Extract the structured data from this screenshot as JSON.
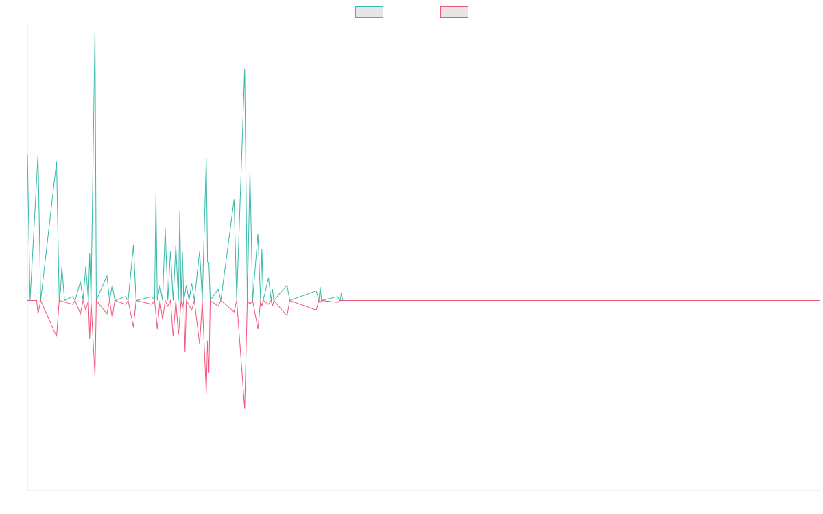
{
  "chart_data": {
    "type": "line",
    "title": "",
    "xlabel": "",
    "ylabel": "",
    "grid": false,
    "legend": {
      "placement": "top-center",
      "entries": [
        {
          "series": 0,
          "label": ""
        },
        {
          "series": 1,
          "label": ""
        }
      ]
    },
    "x_count": 300,
    "ylim": [
      -100,
      145
    ],
    "series": [
      {
        "color": "#36b8a8",
        "fill": "#e6e6e6",
        "points": [
          [
            0,
            77
          ],
          [
            1,
            0
          ],
          [
            4,
            77
          ],
          [
            5,
            0
          ],
          [
            11,
            73
          ],
          [
            12,
            0
          ],
          [
            12.5,
            5
          ],
          [
            13,
            18
          ],
          [
            14,
            0
          ],
          [
            17,
            2
          ],
          [
            18,
            0
          ],
          [
            20,
            10
          ],
          [
            21,
            0
          ],
          [
            22,
            18
          ],
          [
            23,
            0
          ],
          [
            23.5,
            25
          ],
          [
            24,
            0
          ],
          [
            25.5,
            143
          ],
          [
            26,
            0
          ],
          [
            30,
            13
          ],
          [
            31,
            0
          ],
          [
            32,
            8
          ],
          [
            33,
            0
          ],
          [
            37,
            2
          ],
          [
            38,
            0
          ],
          [
            40,
            29
          ],
          [
            41,
            0
          ],
          [
            47,
            2
          ],
          [
            48,
            0
          ],
          [
            48.5,
            56
          ],
          [
            49,
            0
          ],
          [
            50,
            8
          ],
          [
            51,
            0
          ],
          [
            52,
            38
          ],
          [
            53,
            0
          ],
          [
            54,
            26
          ],
          [
            55,
            0
          ],
          [
            56,
            29
          ],
          [
            57,
            0
          ],
          [
            57.5,
            47
          ],
          [
            58,
            0
          ],
          [
            58.5,
            26
          ],
          [
            59,
            0
          ],
          [
            60,
            8
          ],
          [
            61,
            0
          ],
          [
            62,
            9
          ],
          [
            63,
            0
          ],
          [
            65,
            26
          ],
          [
            66,
            0
          ],
          [
            67.5,
            75
          ],
          [
            68,
            20
          ],
          [
            68.5,
            20
          ],
          [
            69,
            0
          ],
          [
            72,
            6
          ],
          [
            73,
            0
          ],
          [
            78,
            53
          ],
          [
            79,
            0
          ],
          [
            82,
            122
          ],
          [
            83,
            0
          ],
          [
            84,
            68
          ],
          [
            85,
            0
          ],
          [
            87,
            35
          ],
          [
            88,
            0
          ],
          [
            88.5,
            27
          ],
          [
            89,
            0
          ],
          [
            91,
            12
          ],
          [
            92,
            0
          ],
          [
            92.5,
            6
          ],
          [
            93,
            0
          ],
          [
            98,
            8
          ],
          [
            99,
            0
          ],
          [
            109,
            5
          ],
          [
            110,
            0
          ],
          [
            110.5,
            7
          ],
          [
            111,
            0
          ],
          [
            117,
            2
          ],
          [
            118,
            0
          ],
          [
            118.5,
            4
          ],
          [
            119,
            0
          ],
          [
            299,
            0
          ]
        ]
      },
      {
        "color": "#f05478",
        "fill": "#e6e6e6",
        "points": [
          [
            0,
            0
          ],
          [
            3.5,
            0
          ],
          [
            4,
            -7
          ],
          [
            5,
            0
          ],
          [
            11,
            -19
          ],
          [
            12,
            0
          ],
          [
            17,
            -2
          ],
          [
            18,
            0
          ],
          [
            20,
            -7
          ],
          [
            21,
            0
          ],
          [
            22,
            -5
          ],
          [
            23,
            0
          ],
          [
            23.5,
            -20
          ],
          [
            24,
            0
          ],
          [
            25.5,
            -40
          ],
          [
            26,
            0
          ],
          [
            30,
            -7
          ],
          [
            31,
            0
          ],
          [
            32,
            -9
          ],
          [
            33,
            0
          ],
          [
            37,
            -2
          ],
          [
            38,
            0
          ],
          [
            40,
            -14
          ],
          [
            41,
            0
          ],
          [
            47,
            -2
          ],
          [
            48,
            0
          ],
          [
            49,
            -15
          ],
          [
            50,
            0
          ],
          [
            51,
            -10
          ],
          [
            52,
            0
          ],
          [
            53,
            -3
          ],
          [
            54,
            0
          ],
          [
            55,
            -19
          ],
          [
            56,
            0
          ],
          [
            57,
            -18
          ],
          [
            58,
            0
          ],
          [
            58.5,
            -4
          ],
          [
            59,
            0
          ],
          [
            59.5,
            -27
          ],
          [
            60,
            0
          ],
          [
            62,
            -5
          ],
          [
            63,
            0
          ],
          [
            65,
            -23
          ],
          [
            66,
            0
          ],
          [
            67.5,
            -49
          ],
          [
            68,
            -21
          ],
          [
            68.5,
            -38
          ],
          [
            69,
            0
          ],
          [
            72,
            -3
          ],
          [
            73,
            0
          ],
          [
            78,
            -6
          ],
          [
            79,
            0
          ],
          [
            82,
            -57
          ],
          [
            83,
            0
          ],
          [
            84,
            -2
          ],
          [
            85,
            0
          ],
          [
            87,
            -15
          ],
          [
            88,
            0
          ],
          [
            88.5,
            -3
          ],
          [
            89,
            0
          ],
          [
            91,
            -2
          ],
          [
            92,
            0
          ],
          [
            92.5,
            -3
          ],
          [
            93,
            0
          ],
          [
            98,
            -8
          ],
          [
            99,
            0
          ],
          [
            109,
            -5
          ],
          [
            110,
            0
          ],
          [
            110.5,
            -1
          ],
          [
            111,
            0
          ],
          [
            117,
            -1
          ],
          [
            118,
            0
          ],
          [
            299,
            0
          ]
        ]
      }
    ]
  }
}
